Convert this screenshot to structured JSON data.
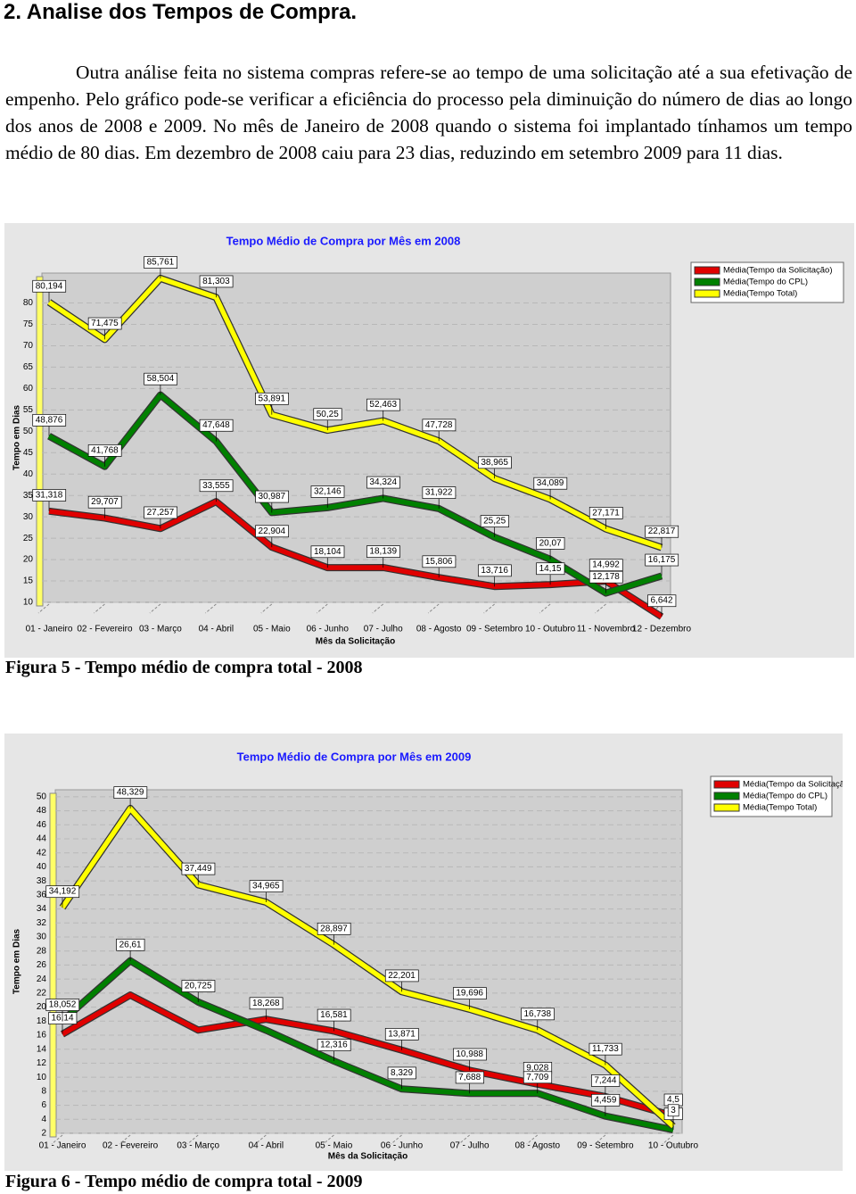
{
  "heading": "2. Analise dos Tempos de Compra.",
  "paragraph": "Outra análise feita no sistema compras refere-se ao tempo de uma solicitação até a sua efetivação de empenho. Pelo gráfico pode-se verificar a eficiência do processo pela diminuição do número de dias ao longo dos anos de 2008 e 2009. No mês de Janeiro de 2008 quando o sistema foi implantado tínhamos um tempo médio de 80 dias. Em dezembro de 2008 caiu para 23 dias, reduzindo em setembro 2009 para 11 dias.",
  "chart_data": [
    {
      "type": "line",
      "title": "Tempo Médio de Compra por Mês em 2008",
      "x_label": "Mês da Solicitação",
      "y_label": "Tempo em Dias",
      "categories": [
        "01 - Janeiro",
        "02 - Fevereiro",
        "03 - Março",
        "04 - Abril",
        "05 - Maio",
        "06 - Junho",
        "07 - Julho",
        "08 - Agosto",
        "09 - Setembro",
        "10 - Outubro",
        "11 - Novembro",
        "12 - Dezembro"
      ],
      "series": [
        {
          "name": "Média(Tempo da Solicitação)",
          "color": "#e00000",
          "values": [
            31.318,
            29.707,
            27.257,
            33.555,
            22.904,
            18.104,
            18.139,
            15.806,
            13.716,
            14.15,
            14.992,
            6.642
          ],
          "value_labels": [
            "31,318",
            "29,707",
            "27,257",
            "33,555",
            "22,904",
            "18,104",
            "18,139",
            "15,806",
            "13,716",
            "14,15",
            "14,992",
            "6,642"
          ]
        },
        {
          "name": "Média(Tempo do CPL)",
          "color": "#008000",
          "values": [
            48.876,
            41.768,
            58.504,
            47.648,
            30.987,
            32.146,
            34.324,
            31.922,
            25.25,
            20.07,
            12.178,
            16.175
          ],
          "value_labels": [
            "48,876",
            "41,768",
            "58,504",
            "47,648",
            "30,987",
            "32,146",
            "34,324",
            "31,922",
            "25,25",
            "20,07",
            "12,178",
            "16,175"
          ]
        },
        {
          "name": "Média(Tempo Total)",
          "color": "#ffff00",
          "values": [
            80.194,
            71.475,
            85.761,
            81.303,
            53.891,
            50.25,
            52.463,
            47.728,
            38.965,
            34.089,
            27.171,
            22.817
          ],
          "value_labels": [
            "80,194",
            "71,475",
            "85,761",
            "81,303",
            "53,891",
            "50,25",
            "52,463",
            "47,728",
            "38,965",
            "34,089",
            "27,171",
            "22,817"
          ]
        }
      ],
      "ylim": [
        10,
        87
      ],
      "yticks": [
        10,
        15,
        20,
        25,
        30,
        35,
        40,
        45,
        50,
        55,
        60,
        65,
        70,
        75,
        80
      ],
      "grid": true,
      "legend": "top-right"
    },
    {
      "type": "line",
      "title": "Tempo Médio de Compra por Mês em 2009",
      "x_label": "Mês da Solicitação",
      "y_label": "Tempo em Dias",
      "categories": [
        "01 - Janeiro",
        "02 - Fevereiro",
        "03 - Março",
        "04 - Abril",
        "05 - Maio",
        "06 - Junho",
        "07 - Julho",
        "08 - Agosto",
        "09 - Setembro",
        "10 - Outubro"
      ],
      "series": [
        {
          "name": "Média(Tempo da Solicitação)",
          "color": "#e00000",
          "values": [
            16.14,
            21.719,
            16.724,
            18.268,
            16.581,
            13.871,
            10.988,
            9.028,
            7.244,
            4.5
          ],
          "value_labels": [
            "16,14",
            null,
            null,
            "18,268",
            "16,581",
            "13,871",
            "10,988",
            "9,028",
            "7,244",
            "4,5"
          ]
        },
        {
          "name": "Média(Tempo do CPL)",
          "color": "#008000",
          "values": [
            18.052,
            26.61,
            20.725,
            16.697,
            12.316,
            8.329,
            7.688,
            7.709,
            4.459,
            2.5
          ],
          "value_labels": [
            "18,052",
            "26,61",
            "20,725",
            null,
            "12,316",
            "8,329",
            "7,688",
            "7,709",
            "4,459",
            "2,5"
          ]
        },
        {
          "name": "Média(Tempo Total)",
          "color": "#ffff00",
          "values": [
            34.192,
            48.329,
            37.449,
            34.965,
            28.897,
            22.201,
            19.696,
            16.738,
            11.733,
            3
          ],
          "value_labels": [
            "34,192",
            "48,329",
            "37,449",
            "34,965",
            "28,897",
            "22,201",
            "19,696",
            "16,738",
            "11,733",
            "3"
          ]
        }
      ],
      "ylim": [
        2,
        51
      ],
      "yticks": [
        2,
        4,
        6,
        8,
        10,
        12,
        14,
        16,
        18,
        20,
        22,
        24,
        26,
        28,
        30,
        32,
        34,
        36,
        38,
        40,
        42,
        44,
        46,
        48,
        50
      ],
      "grid": true,
      "legend": "top-right"
    }
  ],
  "captions": [
    "Figura 5 - Tempo médio de compra total - 2008",
    "Figura 6 - Tempo médio de compra total - 2009"
  ]
}
